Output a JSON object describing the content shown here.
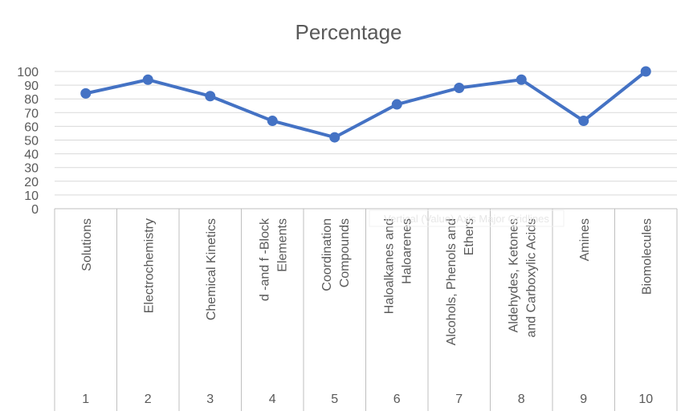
{
  "chart_data": {
    "type": "line",
    "title": "Percentage",
    "ylim": [
      0,
      100
    ],
    "yticks": [
      0,
      10,
      20,
      30,
      40,
      50,
      60,
      70,
      80,
      90,
      100
    ],
    "grid": true,
    "legend": "none",
    "categories": [
      {
        "number": "1",
        "label": [
          "Solutions"
        ]
      },
      {
        "number": "2",
        "label": [
          "Electrochemistry"
        ]
      },
      {
        "number": "3",
        "label": [
          "Chemical Kinetics"
        ]
      },
      {
        "number": "4",
        "label": [
          "d -and f -Block",
          "Elements"
        ]
      },
      {
        "number": "5",
        "label": [
          "Coordination",
          "Compounds"
        ]
      },
      {
        "number": "6",
        "label": [
          "Haloalkanes and",
          "Haloarenes"
        ]
      },
      {
        "number": "7",
        "label": [
          "Alcohols, Phenols and",
          "Ethers"
        ]
      },
      {
        "number": "8",
        "label": [
          "Aldehydes, Ketones",
          "and Carboxylic Acids"
        ]
      },
      {
        "number": "9",
        "label": [
          "Amines"
        ]
      },
      {
        "number": "10",
        "label": [
          "Biomolecules"
        ]
      }
    ],
    "series": [
      {
        "values": [
          84,
          94,
          82,
          64,
          52,
          76,
          88,
          94,
          64,
          100
        ],
        "color": "#4472c4"
      }
    ],
    "ghost_text": "Vertical (Value) Axis Major Gridlines"
  }
}
